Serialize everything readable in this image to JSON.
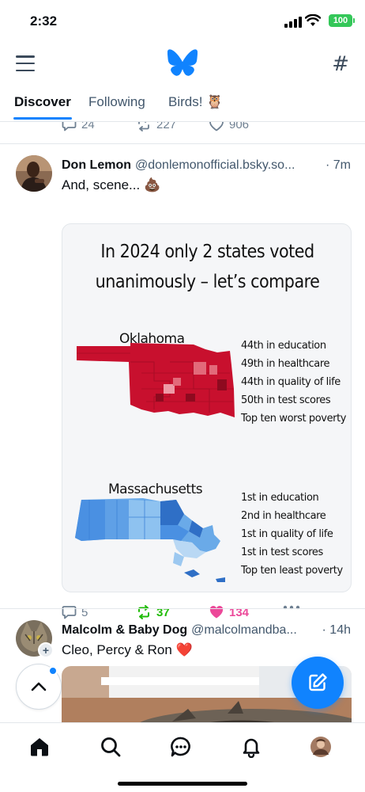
{
  "status_bar": {
    "time": "2:32",
    "battery": "100"
  },
  "tabs": [
    {
      "label": "Discover"
    },
    {
      "label": "Following"
    },
    {
      "label": "Birds! 🦉"
    }
  ],
  "previous_post": {
    "replies": "24",
    "reposts": "227",
    "likes": "906"
  },
  "posts": [
    {
      "author": "Don Lemon",
      "handle": "@donlemonofficial.bsky.so...",
      "time": "· 7m",
      "text": "And, scene... 💩",
      "image": {
        "title_line1": "In 2024 only 2 states voted",
        "title_line2": "unanimously – let’s compare",
        "state1": {
          "name": "Oklahoma",
          "color": "#d7192a",
          "stats": [
            "44th in education",
            "49th in healthcare",
            "44th in quality of life",
            "50th in test scores",
            "Top ten worst poverty"
          ]
        },
        "state2": {
          "name": "Massachusetts",
          "color": "#4a90e2",
          "stats": [
            "1st in education",
            "2nd in healthcare",
            "1st in quality of life",
            "1st in test scores",
            "Top ten least poverty"
          ]
        }
      },
      "replies": "5",
      "reposts": "37",
      "likes": "134"
    },
    {
      "author": "Malcolm & Baby Dog",
      "handle": "@malcolmandba...",
      "time": "· 14h",
      "text": "Cleo, Percy & Ron ❤️"
    }
  ],
  "icons": {
    "menu": "hamburger-icon",
    "logo": "butterfly-logo",
    "feeds": "hashtag-icon",
    "compose": "pencil-square-icon",
    "scroll_top": "chevron-up-icon",
    "nav": [
      "home-icon",
      "search-icon",
      "chat-icon",
      "bell-icon",
      "profile-avatar"
    ]
  },
  "colors": {
    "accent": "#1083fe",
    "repost_active": "#20bc07",
    "like_active": "#ec4899",
    "muted": "#6f8092"
  }
}
